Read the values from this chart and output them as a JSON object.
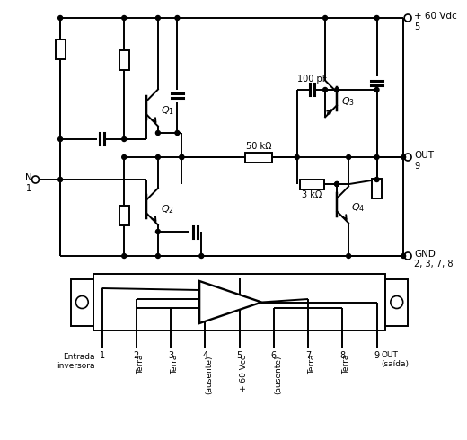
{
  "bg_color": "#ffffff",
  "line_color": "#000000",
  "supply_label": "+ 60 Vdc",
  "supply_pin": "5",
  "gnd_label": "GND",
  "gnd_pins": "2, 3, 7, 8",
  "out_label": "OUT",
  "out_pin": "9",
  "n_label": "N",
  "n_pin": "1",
  "label_100pF": "100 pF",
  "label_50k": "50 kΩ",
  "label_3k": "3 kΩ",
  "pin_names_rotated": [
    "Terra",
    "Terra",
    "(ausente)",
    "+ 60 Vcc",
    "(ausente)",
    "Terra",
    "Terra"
  ],
  "pin_numbers": [
    "1",
    "2",
    "3",
    "4",
    "5",
    "6",
    "7",
    "8",
    "9"
  ],
  "entrada_label": "Entrada\ninversora",
  "out_saida_label": "OUT\n(saída)"
}
